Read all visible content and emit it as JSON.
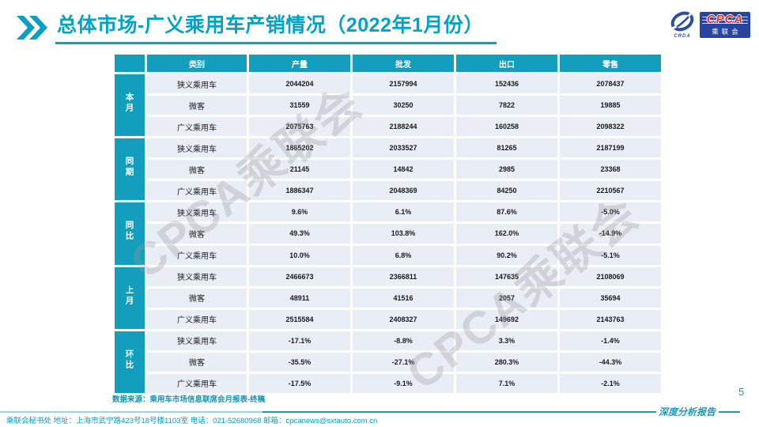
{
  "title": {
    "text": "总体市场-广义乘用车产销情况（2022年1月份）"
  },
  "logo": {
    "emblem_label": "CRDA",
    "name": "CPCA",
    "subtitle": "乘联会"
  },
  "table": {
    "headers": [
      "类别",
      "产量",
      "批发",
      "出口",
      "零售"
    ],
    "groups": [
      {
        "label": "本月",
        "rows": [
          {
            "category": "狭义乘用车",
            "values": [
              "2044204",
              "2157994",
              "152436",
              "2078437"
            ]
          },
          {
            "category": "微客",
            "values": [
              "31559",
              "30250",
              "7822",
              "19885"
            ]
          },
          {
            "category": "广义乘用车",
            "values": [
              "2075763",
              "2188244",
              "160258",
              "2098322"
            ]
          }
        ]
      },
      {
        "label": "同期",
        "rows": [
          {
            "category": "狭义乘用车",
            "values": [
              "1865202",
              "2033527",
              "81265",
              "2187199"
            ]
          },
          {
            "category": "微客",
            "values": [
              "21145",
              "14842",
              "2985",
              "23368"
            ]
          },
          {
            "category": "广义乘用车",
            "values": [
              "1886347",
              "2048369",
              "84250",
              "2210567"
            ]
          }
        ]
      },
      {
        "label": "同比",
        "rows": [
          {
            "category": "狭义乘用车",
            "values": [
              "9.6%",
              "6.1%",
              "87.6%",
              "-5.0%"
            ]
          },
          {
            "category": "微客",
            "values": [
              "49.3%",
              "103.8%",
              "162.0%",
              "-14.9%"
            ]
          },
          {
            "category": "广义乘用车",
            "values": [
              "10.0%",
              "6.8%",
              "90.2%",
              "-5.1%"
            ]
          }
        ]
      },
      {
        "label": "上月",
        "rows": [
          {
            "category": "狭义乘用车",
            "values": [
              "2466673",
              "2366811",
              "147635",
              "2108069"
            ]
          },
          {
            "category": "微客",
            "values": [
              "48911",
              "41516",
              "2057",
              "35694"
            ]
          },
          {
            "category": "广义乘用车",
            "values": [
              "2515584",
              "2408327",
              "149692",
              "2143763"
            ]
          }
        ]
      },
      {
        "label": "环比",
        "rows": [
          {
            "category": "狭义乘用车",
            "values": [
              "-17.1%",
              "-8.8%",
              "3.3%",
              "-1.4%"
            ]
          },
          {
            "category": "微客",
            "values": [
              "-35.5%",
              "-27.1%",
              "280.3%",
              "-44.3%"
            ]
          },
          {
            "category": "广义乘用车",
            "values": [
              "-17.5%",
              "-9.1%",
              "7.1%",
              "-2.1%"
            ]
          }
        ]
      }
    ]
  },
  "source_note": "数据来源：乘用车市场信息联席会月报表-终稿",
  "watermark": {
    "text": "CPCA乘联会"
  },
  "footer": {
    "contact": "乘联会秘书处   地址：上海市武宁路423号18号楼1103室  电话：021-52680968   邮箱：cpcanews@sxtauto.com.cn",
    "report_label": "深度分析报告",
    "page_number": "5"
  },
  "colors": {
    "accent_teal": "#00A2C6",
    "table_teal": "#149EBE",
    "row_background": "#E9EEF6",
    "logo_blue": "#27459E",
    "logo_red": "#DC2F2A"
  }
}
